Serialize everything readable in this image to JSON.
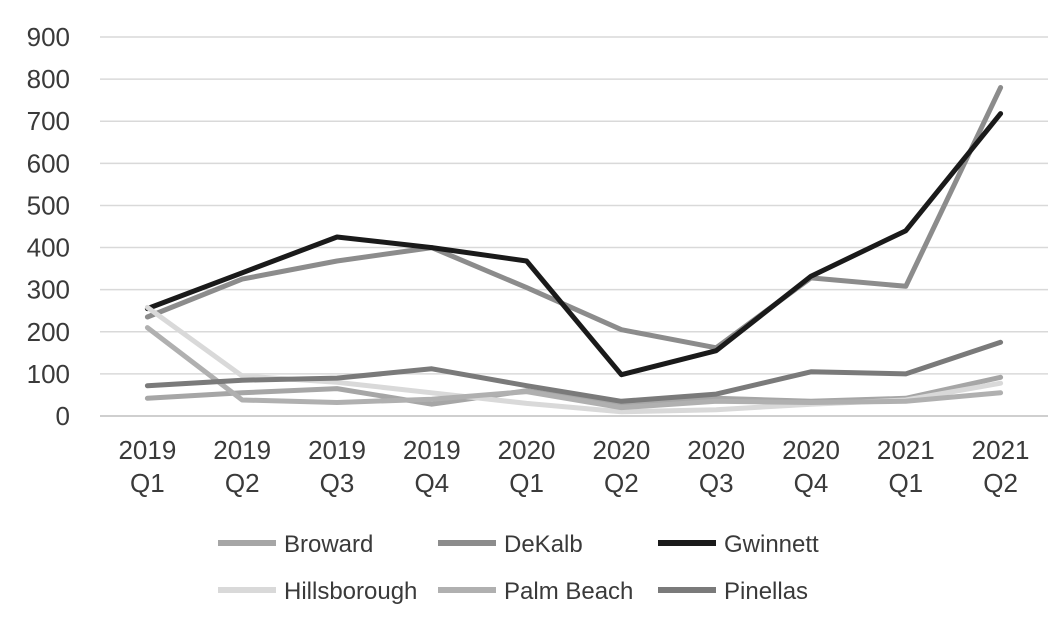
{
  "chart_data": {
    "type": "line",
    "title": "",
    "xlabel": "",
    "ylabel": "",
    "ylim": [
      0,
      900
    ],
    "yticks": [
      0,
      100,
      200,
      300,
      400,
      500,
      600,
      700,
      800,
      900
    ],
    "grid": "horizontal",
    "legend_position": "bottom",
    "categories": [
      [
        "2019",
        "Q1"
      ],
      [
        "2019",
        "Q2"
      ],
      [
        "2019",
        "Q3"
      ],
      [
        "2019",
        "Q4"
      ],
      [
        "2020",
        "Q1"
      ],
      [
        "2020",
        "Q2"
      ],
      [
        "2020",
        "Q3"
      ],
      [
        "2020",
        "Q4"
      ],
      [
        "2021",
        "Q1"
      ],
      [
        "2021",
        "Q2"
      ]
    ],
    "series": [
      {
        "name": "Broward",
        "color": "#a6a6a6",
        "values": [
          42,
          55,
          65,
          28,
          60,
          25,
          42,
          35,
          42,
          92
        ]
      },
      {
        "name": "DeKalb",
        "color": "#8c8c8c",
        "values": [
          235,
          325,
          368,
          400,
          305,
          205,
          162,
          328,
          308,
          780
        ]
      },
      {
        "name": "Gwinnett",
        "color": "#1a1a1a",
        "values": [
          255,
          340,
          425,
          400,
          368,
          98,
          155,
          332,
          440,
          718
        ]
      },
      {
        "name": "Hillsborough",
        "color": "#d9d9d9",
        "values": [
          258,
          95,
          80,
          55,
          30,
          10,
          15,
          28,
          38,
          78
        ]
      },
      {
        "name": "Palm Beach",
        "color": "#b0b0b0",
        "values": [
          210,
          38,
          32,
          40,
          58,
          20,
          35,
          32,
          35,
          55
        ]
      },
      {
        "name": "Pinellas",
        "color": "#7a7a7a",
        "values": [
          72,
          85,
          90,
          112,
          72,
          35,
          52,
          105,
          100,
          175
        ]
      }
    ]
  }
}
